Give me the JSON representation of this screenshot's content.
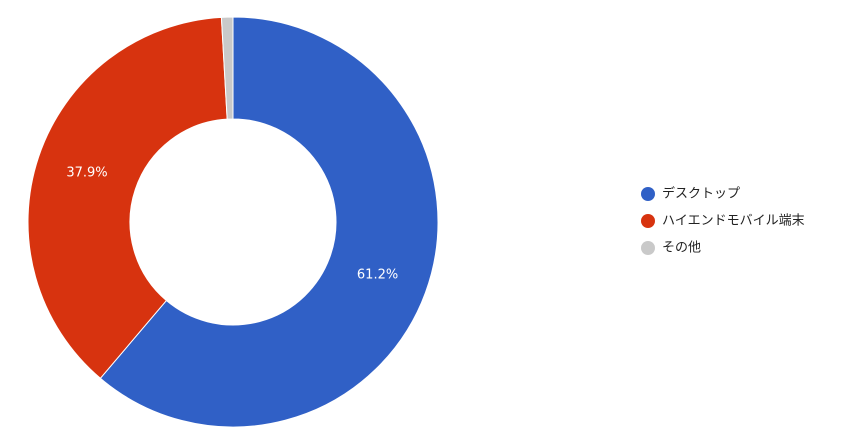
{
  "chart_data": {
    "type": "donut",
    "categories": [
      "デスクトップ",
      "ハイエンドモバイル端末",
      "その他"
    ],
    "values": [
      61.2,
      37.9,
      0.9
    ],
    "value_labels": [
      "61.2%",
      "37.9%",
      null
    ],
    "colors": [
      "#3060c6",
      "#d7330f",
      "#c9c9c9"
    ],
    "legend": "right"
  }
}
